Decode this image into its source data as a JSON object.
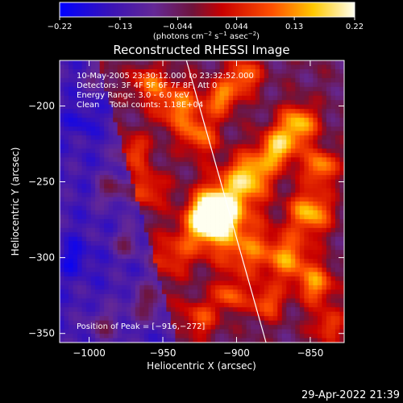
{
  "chart_data": {
    "type": "heatmap",
    "title": "Reconstructed RHESSI Image",
    "xlabel": "Heliocentric X (arcsec)",
    "ylabel": "Heliocentric Y (arcsec)",
    "xlim": [
      -1020,
      -827
    ],
    "ylim": [
      -356,
      -170
    ],
    "xticks": [
      -1000,
      -950,
      -900,
      -850
    ],
    "yticks": [
      -200,
      -250,
      -300,
      -350
    ],
    "colorbar": {
      "ticks": [
        -0.22,
        -0.13,
        -0.044,
        0.044,
        0.13,
        0.22
      ],
      "tick_labels": [
        "−0.22",
        "−0.13",
        "−0.044",
        "0.044",
        "0.13",
        "0.22"
      ],
      "range": [
        -0.22,
        0.22
      ],
      "label_prefix": "(photons cm",
      "label_exp1": "−2",
      "label_mid": " s",
      "label_exp2": "−1",
      "label_mid2": " asec",
      "label_exp3": "−2",
      "label_suffix": ")"
    },
    "info_lines": [
      "10-May-2005 23:30:12.000 to 23:32:52.000",
      "Detectors: 3F 4F 5F 6F 7F 8F, Att 0",
      "Energy Range: 3.0 - 6.0 keV",
      "Clean    Total counts: 1.18E+04"
    ],
    "peak_label": "Position of Peak = [−916,−272]",
    "peak": {
      "x": -916,
      "y": -272,
      "value": 0.22
    },
    "limb_line": [
      [
        -934,
        -170
      ],
      [
        -880,
        -356
      ]
    ],
    "background_level": -0.13,
    "blobs": [
      {
        "x": -916,
        "y": -272,
        "s": 9,
        "a": 0.34
      },
      {
        "x": -905,
        "y": -262,
        "s": 14,
        "a": 0.16
      },
      {
        "x": -925,
        "y": -283,
        "s": 12,
        "a": 0.12
      },
      {
        "x": -895,
        "y": -295,
        "s": 13,
        "a": 0.14
      },
      {
        "x": -890,
        "y": -245,
        "s": 10,
        "a": 0.18
      },
      {
        "x": -872,
        "y": -228,
        "s": 9,
        "a": 0.2
      },
      {
        "x": -858,
        "y": -212,
        "s": 9,
        "a": 0.2
      },
      {
        "x": -843,
        "y": -240,
        "s": 8,
        "a": 0.18
      },
      {
        "x": -850,
        "y": -270,
        "s": 10,
        "a": 0.2
      },
      {
        "x": -865,
        "y": -300,
        "s": 11,
        "a": 0.16
      },
      {
        "x": -880,
        "y": -330,
        "s": 8,
        "a": 0.14
      },
      {
        "x": -846,
        "y": -318,
        "s": 9,
        "a": 0.16
      },
      {
        "x": -838,
        "y": -345,
        "s": 8,
        "a": 0.12
      },
      {
        "x": -940,
        "y": -200,
        "s": 11,
        "a": 0.16
      },
      {
        "x": -960,
        "y": -185,
        "s": 8,
        "a": 0.14
      },
      {
        "x": -925,
        "y": -220,
        "s": 9,
        "a": 0.14
      },
      {
        "x": -910,
        "y": -195,
        "s": 8,
        "a": 0.16
      },
      {
        "x": -895,
        "y": -180,
        "s": 8,
        "a": 0.16
      },
      {
        "x": -970,
        "y": -230,
        "s": 8,
        "a": 0.12
      },
      {
        "x": -985,
        "y": -255,
        "s": 7,
        "a": 0.1
      },
      {
        "x": -960,
        "y": -255,
        "s": 9,
        "a": 0.12
      },
      {
        "x": -945,
        "y": -300,
        "s": 10,
        "a": 0.1
      },
      {
        "x": -960,
        "y": -330,
        "s": 9,
        "a": 0.1
      },
      {
        "x": -925,
        "y": -340,
        "s": 9,
        "a": 0.12
      },
      {
        "x": -905,
        "y": -325,
        "s": 7,
        "a": 0.14
      },
      {
        "x": -990,
        "y": -345,
        "s": 8,
        "a": 0.08
      },
      {
        "x": -975,
        "y": -290,
        "s": 7,
        "a": 0.08
      },
      {
        "x": -1005,
        "y": -210,
        "s": 7,
        "a": -0.05
      },
      {
        "x": -1010,
        "y": -300,
        "s": 8,
        "a": -0.06
      },
      {
        "x": -995,
        "y": -180,
        "s": 6,
        "a": 0.06
      }
    ]
  },
  "footer": {
    "timestamp": "29-Apr-2022 21:39"
  }
}
